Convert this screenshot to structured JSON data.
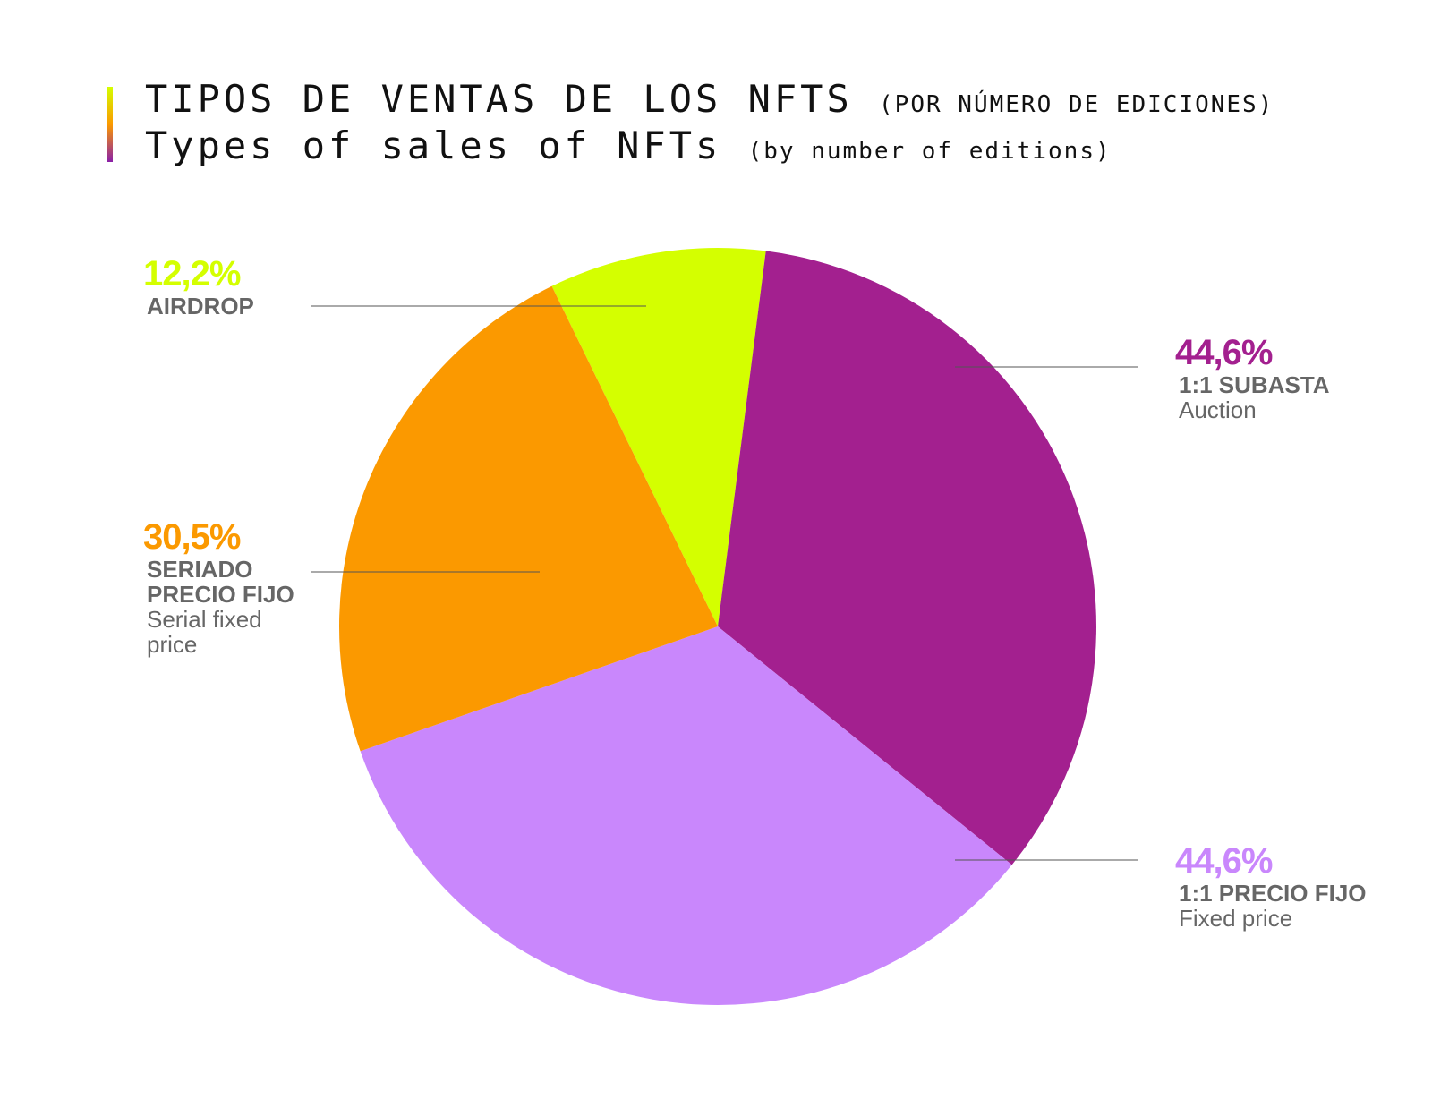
{
  "chart_data": {
    "type": "pie",
    "title": "TIPOS DE VENTAS DE LOS NFTS",
    "title_note": "(POR NÚMERO DE EDICIONES)",
    "subtitle": "Types of sales of NFTs",
    "subtitle_note": "(by number of editions)",
    "categories": [
      "AIRDROP",
      "1:1 SUBASTA",
      "1:1 PRECIO FIJO",
      "SERIADO PRECIO FIJO"
    ],
    "descriptions": [
      null,
      "Auction",
      "Fixed price",
      "Serial fixed price"
    ],
    "values": [
      12.2,
      44.6,
      44.6,
      30.5
    ],
    "value_labels": [
      "12,2%",
      "44,6%",
      "44,6%",
      "30,5%"
    ],
    "colors": [
      "#d4ff00",
      "#a3208f",
      "#c987fc",
      "#fb9900"
    ]
  }
}
